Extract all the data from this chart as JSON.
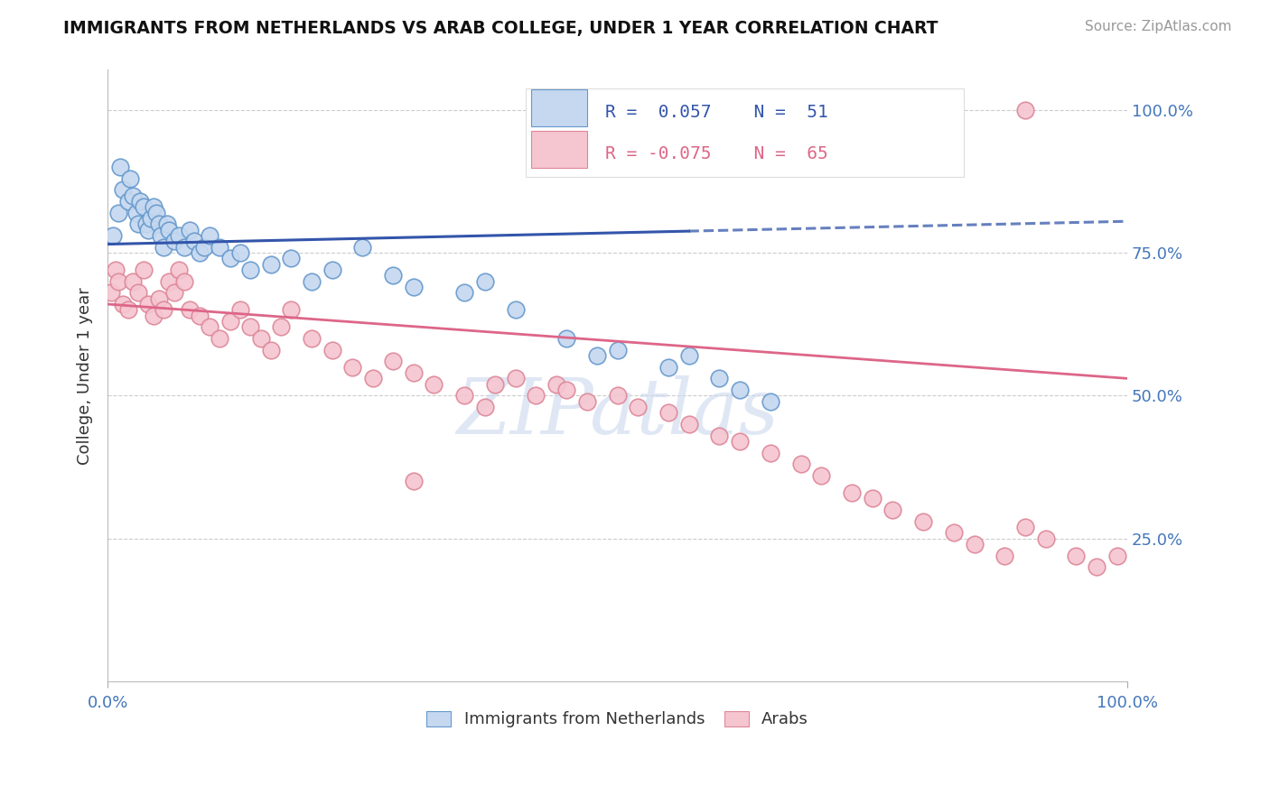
{
  "title": "IMMIGRANTS FROM NETHERLANDS VS ARAB COLLEGE, UNDER 1 YEAR CORRELATION CHART",
  "source_text": "Source: ZipAtlas.com",
  "ylabel": "College, Under 1 year",
  "legend_blue_label": "Immigrants from Netherlands",
  "legend_pink_label": "Arabs",
  "R_blue": 0.057,
  "N_blue": 51,
  "R_pink": -0.075,
  "N_pink": 65,
  "blue_fill": "#c5d8f0",
  "blue_edge": "#6699cc",
  "pink_fill": "#f5c5d0",
  "pink_edge": "#dd8899",
  "blue_line_color": "#3355aa",
  "pink_line_color": "#dd6688",
  "axis_label_color": "#4477bb",
  "watermark_color": "#ccd8ee",
  "blue_x": [
    0.5,
    1.0,
    1.2,
    1.5,
    2.0,
    2.2,
    2.5,
    2.8,
    3.0,
    3.2,
    3.5,
    3.8,
    4.0,
    4.2,
    4.5,
    4.8,
    5.0,
    5.2,
    5.5,
    5.8,
    6.0,
    6.5,
    7.0,
    7.5,
    8.0,
    8.5,
    9.0,
    9.5,
    10.0,
    11.0,
    12.0,
    13.0,
    14.0,
    16.0,
    18.0,
    20.0,
    22.0,
    25.0,
    30.0,
    35.0,
    37.0,
    40.0,
    45.0,
    48.0,
    50.0,
    55.0,
    57.0,
    60.0,
    62.0,
    65.0,
    28.0
  ],
  "blue_y": [
    78.0,
    82.0,
    90.0,
    86.0,
    84.0,
    88.0,
    85.0,
    82.0,
    80.0,
    84.0,
    83.0,
    80.0,
    79.0,
    81.0,
    83.0,
    82.0,
    80.0,
    78.0,
    76.0,
    80.0,
    79.0,
    77.0,
    78.0,
    76.0,
    79.0,
    77.0,
    75.0,
    76.0,
    78.0,
    76.0,
    74.0,
    75.0,
    72.0,
    73.0,
    74.0,
    70.0,
    72.0,
    76.0,
    69.0,
    68.0,
    70.0,
    65.0,
    60.0,
    57.0,
    58.0,
    55.0,
    57.0,
    53.0,
    51.0,
    49.0,
    71.0
  ],
  "pink_x": [
    0.3,
    0.8,
    1.0,
    1.5,
    2.0,
    2.5,
    3.0,
    3.5,
    4.0,
    4.5,
    5.0,
    5.5,
    6.0,
    6.5,
    7.0,
    7.5,
    8.0,
    9.0,
    10.0,
    11.0,
    12.0,
    13.0,
    14.0,
    15.0,
    16.0,
    17.0,
    18.0,
    20.0,
    22.0,
    24.0,
    26.0,
    28.0,
    30.0,
    32.0,
    35.0,
    37.0,
    38.0,
    40.0,
    42.0,
    44.0,
    45.0,
    47.0,
    50.0,
    52.0,
    55.0,
    57.0,
    60.0,
    62.0,
    65.0,
    68.0,
    70.0,
    73.0,
    75.0,
    77.0,
    80.0,
    83.0,
    85.0,
    88.0,
    90.0,
    92.0,
    95.0,
    97.0,
    99.0,
    90.0,
    30.0
  ],
  "pink_y": [
    68.0,
    72.0,
    70.0,
    66.0,
    65.0,
    70.0,
    68.0,
    72.0,
    66.0,
    64.0,
    67.0,
    65.0,
    70.0,
    68.0,
    72.0,
    70.0,
    65.0,
    64.0,
    62.0,
    60.0,
    63.0,
    65.0,
    62.0,
    60.0,
    58.0,
    62.0,
    65.0,
    60.0,
    58.0,
    55.0,
    53.0,
    56.0,
    54.0,
    52.0,
    50.0,
    48.0,
    52.0,
    53.0,
    50.0,
    52.0,
    51.0,
    49.0,
    50.0,
    48.0,
    47.0,
    45.0,
    43.0,
    42.0,
    40.0,
    38.0,
    36.0,
    33.0,
    32.0,
    30.0,
    28.0,
    26.0,
    24.0,
    22.0,
    27.0,
    25.0,
    22.0,
    20.0,
    22.0,
    100.0,
    35.0
  ],
  "blue_line_x0": 0,
  "blue_line_x1": 100,
  "blue_line_y0": 76.5,
  "blue_line_y1": 80.5,
  "blue_dash_start": 57,
  "pink_line_x0": 0,
  "pink_line_x1": 100,
  "pink_line_y0": 66.0,
  "pink_line_y1": 53.0,
  "xlim": [
    0,
    100
  ],
  "ylim": [
    0,
    107
  ],
  "ytick_vals": [
    25,
    50,
    75,
    100
  ],
  "ytick_labels": [
    "25.0%",
    "50.0%",
    "75.0%",
    "100.0%"
  ]
}
